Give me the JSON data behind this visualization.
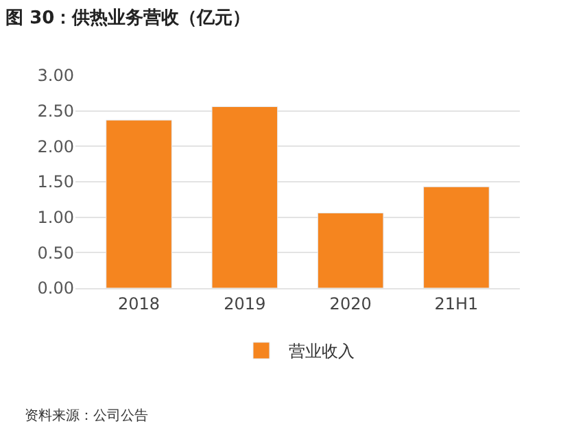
{
  "chart_data": {
    "type": "bar",
    "title": "图 30：供热业务营收（亿元）",
    "categories": [
      "2018",
      "2019",
      "2020",
      "21H1"
    ],
    "series": [
      {
        "name": "营业收入",
        "color": "#f5851f",
        "values": [
          2.37,
          2.56,
          1.06,
          1.43
        ]
      }
    ],
    "ylim": [
      0,
      3
    ],
    "yticks": [
      {
        "value": 0,
        "label": "0.00"
      },
      {
        "value": 0.5,
        "label": "0.50"
      },
      {
        "value": 1,
        "label": "1.00"
      },
      {
        "value": 1.5,
        "label": "1.50"
      },
      {
        "value": 2,
        "label": "2.00"
      },
      {
        "value": 2.5,
        "label": "2.50"
      },
      {
        "value": 3,
        "label": "3.00"
      }
    ],
    "grid": "y",
    "legend": "bottom",
    "annotations": [
      "资料来源：公司公告"
    ]
  }
}
